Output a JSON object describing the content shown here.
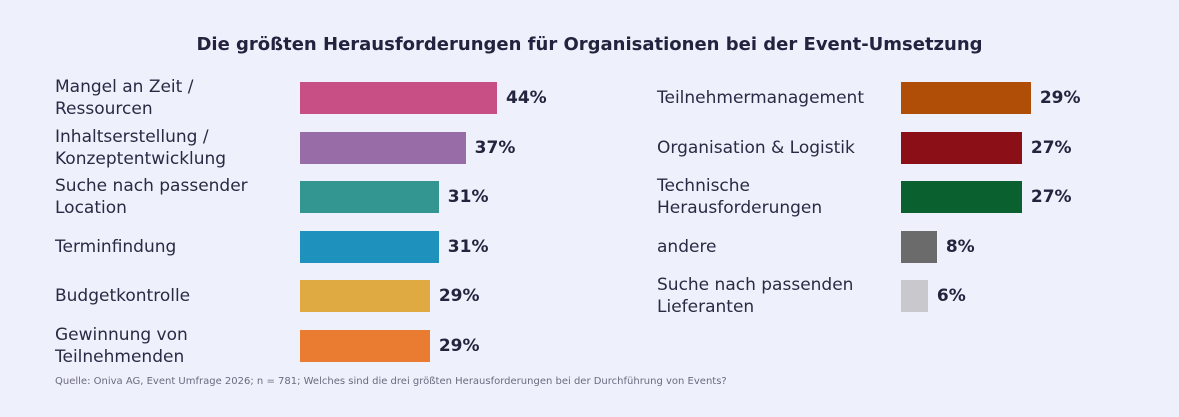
{
  "title": "Die größten Herausforderungen für Organisationen bei der Event-Umsetzung",
  "source": "Quelle: Oniva AG, Event Umfrage 2026; n = 781; Welches sind die drei größten Herausforderungen bei der Durchführung von Events?",
  "chart_data": {
    "type": "bar",
    "orientation": "horizontal",
    "title": "Die größten Herausforderungen für Organisationen bei der Event-Umsetzung",
    "unit": "%",
    "left_column": [
      {
        "label": "Mangel an Zeit / Ressourcen",
        "value": 44,
        "value_label": "44%",
        "color": "#c84f86"
      },
      {
        "label": "Inhaltserstellung / Konzeptentwicklung",
        "value": 37,
        "value_label": "37%",
        "color": "#986ca6"
      },
      {
        "label": "Suche nach passender Location",
        "value": 31,
        "value_label": "31%",
        "color": "#349690"
      },
      {
        "label": "Terminfindung",
        "value": 31,
        "value_label": "31%",
        "color": "#1f91bd"
      },
      {
        "label": "Budgetkontrolle",
        "value": 29,
        "value_label": "29%",
        "color": "#e0aa43"
      },
      {
        "label": "Gewinnung von Teilnehmenden",
        "value": 29,
        "value_label": "29%",
        "color": "#e97c31"
      }
    ],
    "right_column": [
      {
        "label": "Teilnehmermanagement",
        "value": 29,
        "value_label": "29%",
        "color": "#b04d07"
      },
      {
        "label": "Organisation & Logistik",
        "value": 27,
        "value_label": "27%",
        "color": "#8a0f16"
      },
      {
        "label": "Technische Herausforderungen",
        "value": 27,
        "value_label": "27%",
        "color": "#0b6030"
      },
      {
        "label": "andere",
        "value": 8,
        "value_label": "8%",
        "color": "#6b6b6b"
      },
      {
        "label": "Suche nach passenden Lieferanten",
        "value": 6,
        "value_label": "6%",
        "color": "#c9c9cd"
      }
    ]
  }
}
